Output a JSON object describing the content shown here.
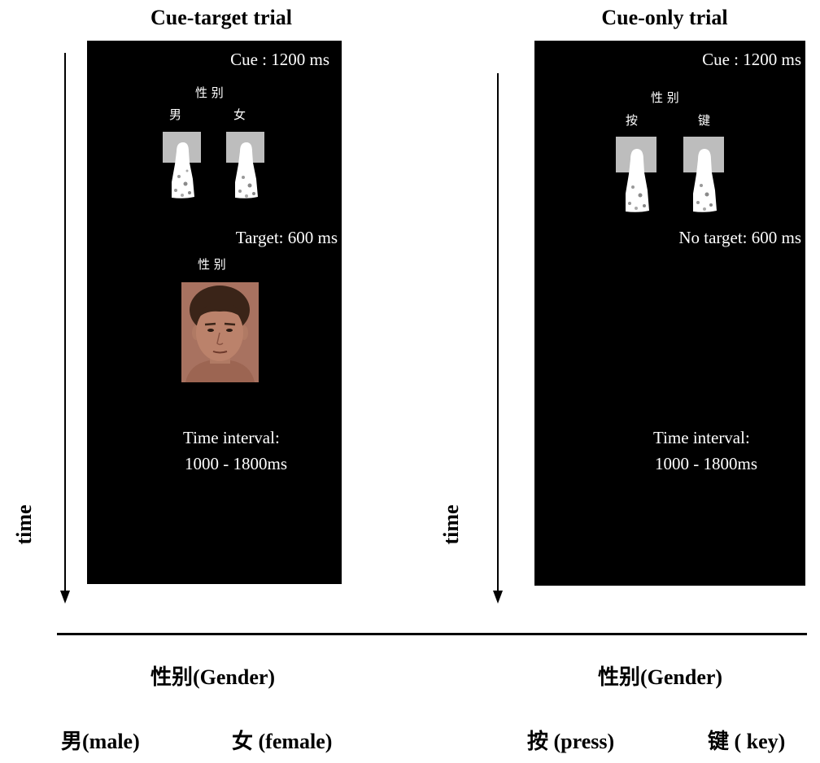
{
  "panels": [
    {
      "title": "Cue-target trial",
      "time_label": "time",
      "cue_duration": "Cue : 1200 ms",
      "cue_heading": "性 别",
      "cue_left_label": "男",
      "cue_right_label": "女",
      "target_duration": "Target: 600 ms",
      "target_heading": "性 别",
      "interval_label": "Time interval:",
      "interval_range": "1000 - 1800ms"
    },
    {
      "title": "Cue-only trial",
      "time_label": "time",
      "cue_duration": "Cue : 1200 ms",
      "cue_heading": "性 别",
      "cue_left_label": "按",
      "cue_right_label": "键",
      "target_duration": "No target: 600 ms",
      "interval_label": "Time interval:",
      "interval_range": "1000 - 1800ms"
    }
  ],
  "legend": {
    "left": {
      "heading": "性别(Gender)",
      "item_1": "男(male)",
      "item_2": "女 (female)"
    },
    "right": {
      "heading": "性别(Gender)",
      "item_1": "按 (press)",
      "item_2": "键 ( key)"
    }
  },
  "colors": {
    "panel_background": "#000000",
    "panel_text": "#ffffff",
    "key_fill": "#bdbdbd"
  }
}
